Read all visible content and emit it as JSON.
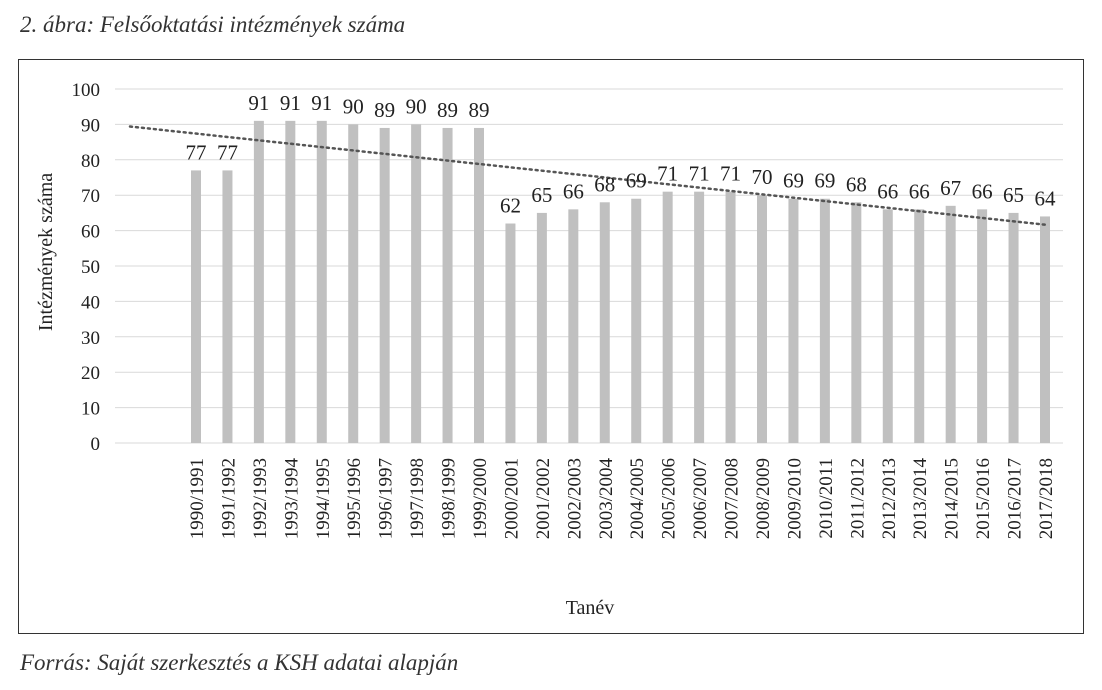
{
  "figure": {
    "caption": "2. ábra: Felsőoktatási intézmények száma",
    "source": "Forrás: Saját szerkesztés a KSH adatai alapján"
  },
  "chart_data": {
    "type": "bar",
    "xlabel": "Tanév",
    "ylabel": "Intézmények száma",
    "ylim": [
      0,
      100
    ],
    "yticks": [
      0,
      10,
      20,
      30,
      40,
      50,
      60,
      70,
      80,
      90,
      100
    ],
    "grid": true,
    "trendline": "linear",
    "categories": [
      "1990/1991",
      "1991/1992",
      "1992/1993",
      "1993/1994",
      "1994/1995",
      "1995/1996",
      "1996/1997",
      "1997/1998",
      "1998/1999",
      "1999/2000",
      "2000/2001",
      "2001/2002",
      "2002/2003",
      "2003/2004",
      "2004/2005",
      "2005/2006",
      "2006/2007",
      "2007/2008",
      "2008/2009",
      "2009/2010",
      "2010/2011",
      "2011/2012",
      "2012/2013",
      "2013/2014",
      "2014/2015",
      "2015/2016",
      "2016/2017",
      "2017/2018"
    ],
    "values": [
      77,
      77,
      91,
      91,
      91,
      90,
      89,
      90,
      89,
      89,
      62,
      65,
      66,
      68,
      69,
      71,
      71,
      71,
      70,
      69,
      69,
      68,
      66,
      66,
      67,
      66,
      65,
      64
    ],
    "colors": {
      "bar": "#c0c0c0",
      "grid": "#d9d9d9",
      "trend": "#555555"
    }
  }
}
